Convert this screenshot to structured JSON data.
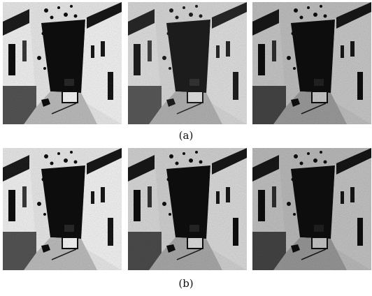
{
  "figure": {
    "captions": {
      "a": "(a)",
      "b": "(b)"
    },
    "rows": [
      {
        "id": "a",
        "panels": [
          "image-1",
          "image-2",
          "image-3"
        ]
      },
      {
        "id": "b",
        "panels": [
          "image-1",
          "image-2",
          "image-3"
        ]
      }
    ]
  },
  "style": {
    "background": "#ffffff",
    "ink": "#111111"
  }
}
